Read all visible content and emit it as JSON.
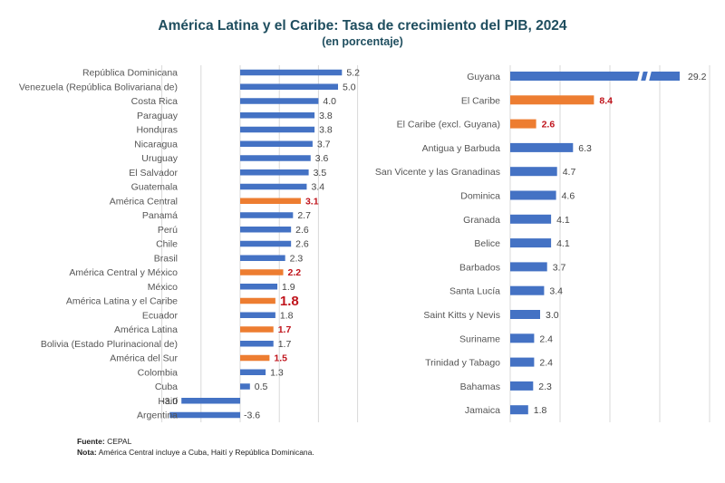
{
  "title": "América Latina y el Caribe: Tasa de crecimiento del PIB, 2024",
  "subtitle": "(en porcentaje)",
  "footer": {
    "source_label": "Fuente:",
    "source_text": " CEPAL",
    "note_label": "Nota:",
    "note_text": " América Central incluye a Cuba, Haití y República Dominicana."
  },
  "colors": {
    "country": "#4472c4",
    "aggregate": "#ed7d31",
    "aggregate_label": "#c0141c",
    "grid": "#d9d9d9"
  },
  "chart_data": [
    {
      "type": "bar",
      "orientation": "horizontal",
      "title": "América Latina y el Caribe: Tasa de crecimiento del PIB, 2024",
      "subtitle": "(en porcentaje)",
      "xlim": [
        -4,
        6
      ],
      "grid": true,
      "categories": [
        "República Dominicana",
        "Venezuela (República Bolivariana de)",
        "Costa Rica",
        "Paraguay",
        "Honduras",
        "Nicaragua",
        "Uruguay",
        "El Salvador",
        "Guatemala",
        "América Central",
        "Panamá",
        "Perú",
        "Chile",
        "Brasil",
        "América Central y México",
        "México",
        "América Latina y el Caribe",
        "Ecuador",
        "América Latina",
        "Bolivia (Estado Plurinacional de)",
        "América del Sur",
        "Colombia",
        "Cuba",
        "Haití",
        "Argentina"
      ],
      "values": [
        5.2,
        5.0,
        4.0,
        3.8,
        3.8,
        3.7,
        3.6,
        3.5,
        3.4,
        3.1,
        2.7,
        2.6,
        2.6,
        2.3,
        2.2,
        1.9,
        1.8,
        1.8,
        1.7,
        1.7,
        1.5,
        1.3,
        0.5,
        -3.0,
        -3.6
      ],
      "labels": [
        "5.2",
        "5.0",
        "4.0",
        "3.8",
        "3.8",
        "3.7",
        "3.6",
        "3.5",
        "3.4",
        "3.1",
        "2.7",
        "2.6",
        "2.6",
        "2.3",
        "2.2",
        "1.9",
        "1.8",
        "1.8",
        "1.7",
        "1.7",
        "1.5",
        "1.3",
        "0.5",
        "-3.0",
        "-3.6"
      ],
      "aggregate": [
        false,
        false,
        false,
        false,
        false,
        false,
        false,
        false,
        false,
        true,
        false,
        false,
        false,
        false,
        true,
        false,
        true,
        false,
        true,
        false,
        true,
        false,
        false,
        false,
        false
      ],
      "emphasized": [
        "América Latina y el Caribe"
      ]
    },
    {
      "type": "bar",
      "orientation": "horizontal",
      "xlim": [
        0,
        20
      ],
      "axis_break": "Guyana",
      "grid": true,
      "categories": [
        "Guyana",
        "El Caribe",
        "El Caribe (excl. Guyana)",
        "Antigua y Barbuda",
        "San Vicente y las Granadinas",
        "Dominica",
        "Granada",
        "Belice",
        "Barbados",
        "Santa Lucía",
        "Saint Kitts y Nevis",
        "Suriname",
        "Trinidad y Tabago",
        "Bahamas",
        "Jamaica"
      ],
      "values": [
        29.2,
        8.4,
        2.6,
        6.3,
        4.7,
        4.6,
        4.1,
        4.1,
        3.7,
        3.4,
        3.0,
        2.4,
        2.4,
        2.3,
        1.8
      ],
      "labels": [
        "29.2",
        "8.4",
        "2.6",
        "6.3",
        "4.7",
        "4.6",
        "4.1",
        "4.1",
        "3.7",
        "3.4",
        "3.0",
        "2.4",
        "2.4",
        "2.3",
        "1.8"
      ],
      "aggregate": [
        false,
        true,
        true,
        false,
        false,
        false,
        false,
        false,
        false,
        false,
        false,
        false,
        false,
        false,
        false
      ]
    }
  ]
}
